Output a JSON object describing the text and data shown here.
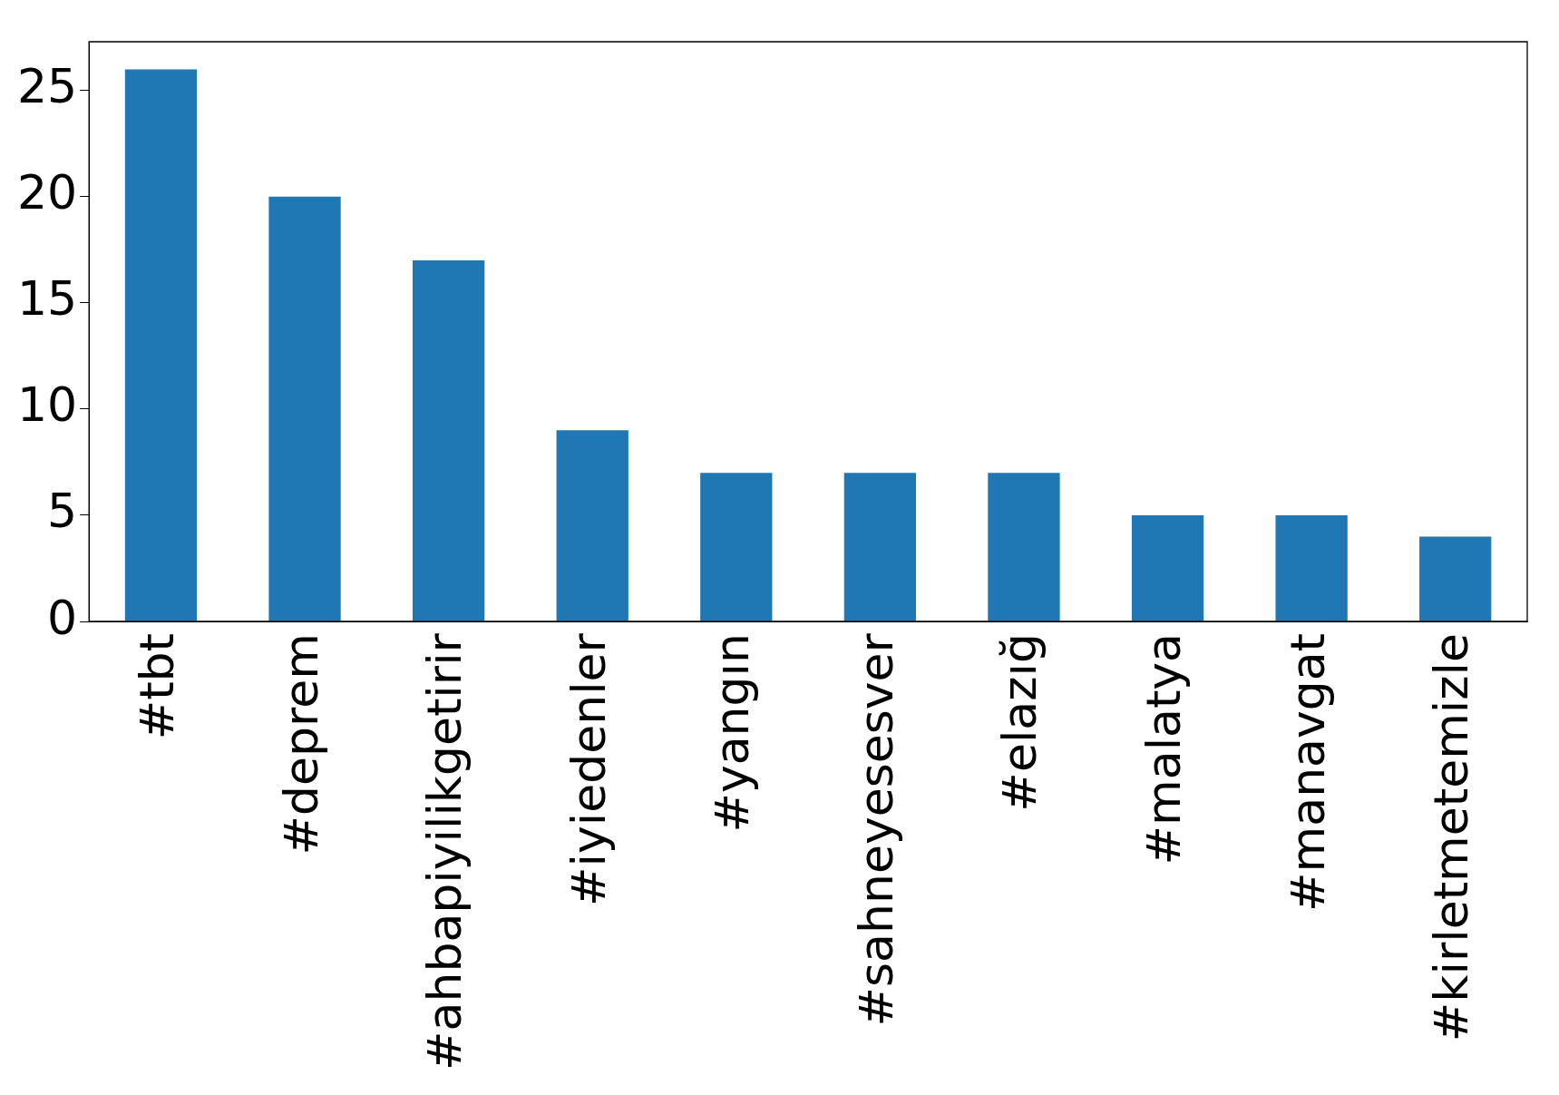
{
  "chart_data": {
    "type": "bar",
    "categories": [
      "#tbt",
      "#deprem",
      "#ahbapiyilikgetirir",
      "#iyiedenler",
      "#yangın",
      "#sahneyesesver",
      "#elazığ",
      "#malatya",
      "#manavgat",
      "#kirletmetemizle"
    ],
    "values": [
      26,
      20,
      17,
      9,
      7,
      7,
      7,
      5,
      5,
      4
    ],
    "color": "#1f77b4",
    "ylim": [
      0,
      27.3
    ],
    "yticks": [
      0,
      5,
      10,
      15,
      20,
      25
    ],
    "grid": false,
    "legend": false
  }
}
